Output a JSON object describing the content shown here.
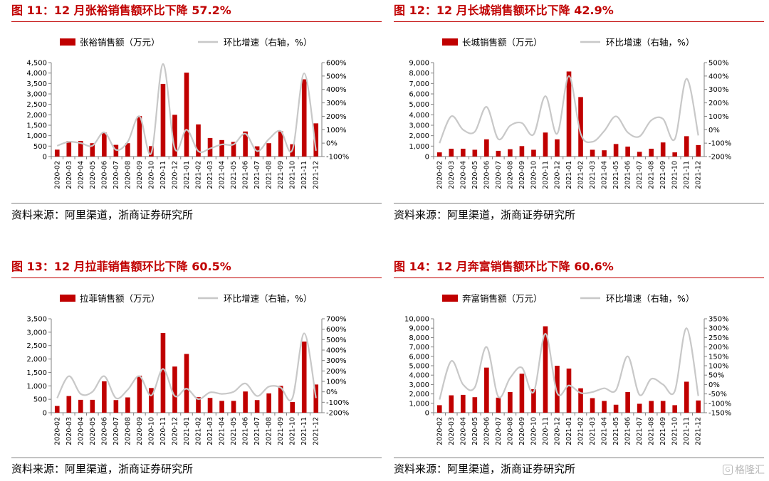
{
  "colors": {
    "bar": "#c00000",
    "line": "#c8c8c8",
    "title": "#c00000",
    "axis": "#808080"
  },
  "watermark": "格隆汇",
  "panels": [
    {
      "title": "图 11：12 月张裕销售额环比下降 57.2%",
      "source": "资料来源：阿里渠道，浙商证券研究所",
      "chart_data": {
        "type": "bar+line",
        "categories": [
          "2020-02",
          "2020-03",
          "2020-04",
          "2020-05",
          "2020-06",
          "2020-07",
          "2020-08",
          "2020-09",
          "2020-10",
          "2020-11",
          "2020-12",
          "2021-01",
          "2021-02",
          "2021-03",
          "2021-04",
          "2021-05",
          "2021-06",
          "2021-07",
          "2021-08",
          "2021-09",
          "2021-10",
          "2021-11",
          "2021-12"
        ],
        "bar_series": {
          "name": "张裕销售额（万元）",
          "values": [
            330,
            740,
            750,
            640,
            1150,
            560,
            640,
            1940,
            500,
            3480,
            2000,
            4020,
            1540,
            890,
            790,
            700,
            1200,
            490,
            640,
            1210,
            590,
            3700,
            1590
          ]
        },
        "line_series": {
          "name": "环比增速（右轴，%）",
          "values": [
            -20,
            10,
            0,
            -20,
            80,
            -50,
            10,
            200,
            -75,
            590,
            -40,
            100,
            -60,
            -40,
            -10,
            -10,
            70,
            -60,
            30,
            90,
            -50,
            520,
            -57
          ]
        },
        "yleft": {
          "min": 0,
          "max": 4500,
          "step": 500,
          "ticks": [
            "0",
            "500",
            "1,000",
            "1,500",
            "2,000",
            "2,500",
            "3,000",
            "3,500",
            "4,000",
            "4,500"
          ]
        },
        "yright": {
          "min": -100,
          "max": 600,
          "step": 100,
          "ticks": [
            "-100%",
            "0%",
            "100%",
            "200%",
            "300%",
            "400%",
            "500%",
            "600%"
          ]
        }
      }
    },
    {
      "title": "图 12：12 月长城销售额环比下降 42.9%",
      "source": "资料来源：阿里渠道，浙商证券研究所",
      "chart_data": {
        "type": "bar+line",
        "categories": [
          "2020-02",
          "2020-03",
          "2020-04",
          "2020-05",
          "2020-06",
          "2020-07",
          "2020-08",
          "2020-09",
          "2020-10",
          "2020-11",
          "2020-12",
          "2021-01",
          "2021-02",
          "2021-03",
          "2021-04",
          "2021-05",
          "2021-06",
          "2021-07",
          "2021-08",
          "2021-09",
          "2021-10",
          "2021-11",
          "2021-12"
        ],
        "bar_series": {
          "name": "长城销售额（万元）",
          "values": [
            400,
            750,
            750,
            650,
            1650,
            550,
            700,
            1000,
            650,
            2300,
            1650,
            8150,
            5700,
            650,
            600,
            1200,
            950,
            450,
            750,
            1350,
            400,
            1950,
            1100
          ]
        },
        "line_series": {
          "name": "环比增速（右轴，%）",
          "values": [
            -100,
            100,
            0,
            -15,
            170,
            -70,
            30,
            50,
            -35,
            250,
            -30,
            400,
            -30,
            -90,
            -10,
            100,
            -20,
            -50,
            70,
            80,
            -70,
            380,
            -43
          ]
        },
        "yleft": {
          "min": 0,
          "max": 9000,
          "step": 1000,
          "ticks": [
            "0",
            "1,000",
            "2,000",
            "3,000",
            "4,000",
            "5,000",
            "6,000",
            "7,000",
            "8,000",
            "9,000"
          ]
        },
        "yright": {
          "min": -200,
          "max": 500,
          "step": 100,
          "ticks": [
            "-200%",
            "-100%",
            "0%",
            "100%",
            "200%",
            "300%",
            "400%",
            "500%"
          ]
        }
      }
    },
    {
      "title": "图 13：12 月拉菲销售额环比下降 60.5%",
      "source": "资料来源：阿里渠道，浙商证券研究所",
      "chart_data": {
        "type": "bar+line",
        "categories": [
          "2020-02",
          "2020-03",
          "2020-04",
          "2020-05",
          "2020-06",
          "2020-07",
          "2020-08",
          "2020-09",
          "2020-10",
          "2020-11",
          "2020-12",
          "2021-01",
          "2021-02",
          "2021-03",
          "2021-04",
          "2021-05",
          "2021-06",
          "2021-07",
          "2021-08",
          "2021-09",
          "2021-10",
          "2021-11",
          "2021-12"
        ],
        "bar_series": {
          "name": "拉菲销售额（万元）",
          "values": [
            250,
            620,
            480,
            480,
            1170,
            470,
            570,
            1380,
            920,
            2970,
            1720,
            2190,
            580,
            550,
            440,
            440,
            790,
            470,
            720,
            1000,
            400,
            2650,
            1050
          ]
        },
        "line_series": {
          "name": "环比增速（右轴，%）",
          "values": [
            -60,
            150,
            -20,
            0,
            150,
            -60,
            20,
            150,
            -35,
            220,
            -40,
            30,
            -70,
            -5,
            -20,
            0,
            80,
            -40,
            50,
            40,
            -60,
            560,
            -60
          ]
        },
        "yleft": {
          "min": 0,
          "max": 3500,
          "step": 500,
          "ticks": [
            "0",
            "500",
            "1,000",
            "1,500",
            "2,000",
            "2,500",
            "3,000",
            "3,500"
          ]
        },
        "yright": {
          "min": -200,
          "max": 700,
          "step": 100,
          "ticks": [
            "-200%",
            "-100%",
            "0%",
            "100%",
            "200%",
            "300%",
            "400%",
            "500%",
            "600%",
            "700%"
          ]
        }
      }
    },
    {
      "title": "图 14：12 月奔富销售额环比下降 60.6%",
      "source": "资料来源：阿里渠道，浙商证券研究所",
      "chart_data": {
        "type": "bar+line",
        "categories": [
          "2020-02",
          "2020-03",
          "2020-04",
          "2020-05",
          "2020-06",
          "2020-07",
          "2020-08",
          "2020-09",
          "2020-10",
          "2020-11",
          "2020-12",
          "2021-01",
          "2021-02",
          "2021-03",
          "2021-04",
          "2021-05",
          "2021-06",
          "2021-07",
          "2021-08",
          "2021-09",
          "2021-10",
          "2021-11",
          "2021-12"
        ],
        "bar_series": {
          "name": "奔富销售额（万元）",
          "values": [
            800,
            1850,
            1900,
            1650,
            4800,
            1600,
            2200,
            4150,
            2500,
            9200,
            5000,
            4700,
            2600,
            1550,
            1250,
            850,
            2200,
            950,
            1250,
            1250,
            800,
            3300,
            1300
          ]
        },
        "line_series": {
          "name": "环比增速（右轴，%）",
          "values": [
            -80,
            125,
            0,
            -15,
            200,
            -65,
            35,
            90,
            -40,
            270,
            -45,
            -5,
            -45,
            -40,
            -20,
            -30,
            150,
            -55,
            30,
            0,
            -35,
            300,
            -61
          ]
        },
        "yleft": {
          "min": 0,
          "max": 10000,
          "step": 1000,
          "ticks": [
            "0",
            "1,000",
            "2,000",
            "3,000",
            "4,000",
            "5,000",
            "6,000",
            "7,000",
            "8,000",
            "9,000",
            "10,000"
          ]
        },
        "yright": {
          "min": -150,
          "max": 350,
          "step": 50,
          "ticks": [
            "-150%",
            "-100%",
            "-50%",
            "0%",
            "50%",
            "100%",
            "150%",
            "200%",
            "250%",
            "300%",
            "350%"
          ]
        }
      }
    }
  ]
}
